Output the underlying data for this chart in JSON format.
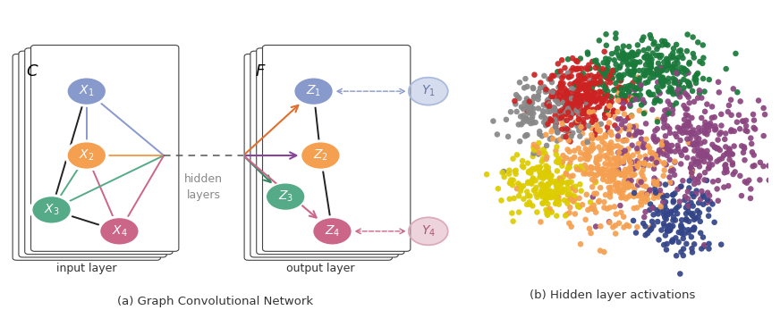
{
  "node_colors": {
    "X1": "#8899cc",
    "X2": "#f5a050",
    "X3": "#55aa88",
    "X4": "#cc6688",
    "Z1": "#8899cc",
    "Z2": "#f5a050",
    "Z3": "#55aa88",
    "Z4": "#cc6688",
    "Y1": "#aabbdd",
    "Y4": "#ddaabb"
  },
  "scatter_colors": [
    "#cc2222",
    "#1a7a3a",
    "#f5a050",
    "#8b4580",
    "#888888",
    "#ddcc00",
    "#334488"
  ],
  "title_left": "(a) Graph Convolutional Network",
  "title_right": "(b) Hidden layer activations",
  "label_input": "input layer",
  "label_output": "output layer",
  "label_hidden": "hidden\nlayers",
  "label_C": "C",
  "label_F": "F",
  "bg_color": "#ffffff",
  "card_edge_color": "#444444",
  "arrow_colors": {
    "toZ1": "#e07030",
    "toZ2": "#884499",
    "toZ3": "#338866",
    "toZ4": "#cc6688"
  },
  "node_r": 0.42,
  "figsize": [
    8.72,
    3.47
  ],
  "dpi": 100
}
